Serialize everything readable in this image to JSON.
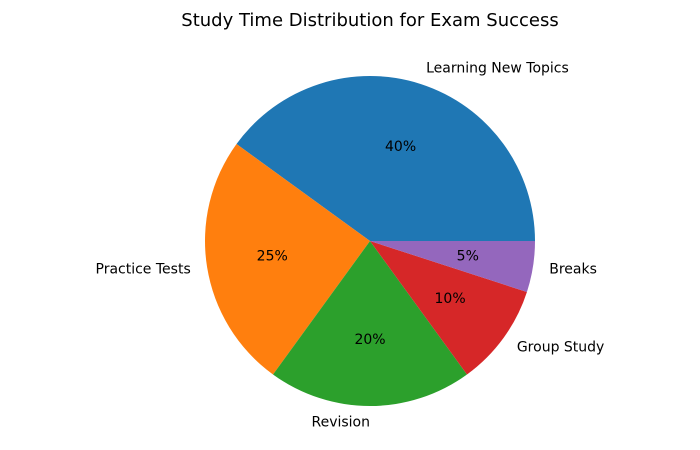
{
  "chart_data": {
    "type": "pie",
    "title": "Study Time Distribution for Exam Success",
    "start_angle_deg": 0,
    "direction": "counterclockwise",
    "slices": [
      {
        "label": "Learning New Topics",
        "value": 40,
        "pct_label": "40%",
        "color": "#1f77b4"
      },
      {
        "label": "Practice Tests",
        "value": 25,
        "pct_label": "25%",
        "color": "#ff7f0e"
      },
      {
        "label": "Revision",
        "value": 20,
        "pct_label": "20%",
        "color": "#2ca02c"
      },
      {
        "label": "Group Study",
        "value": 10,
        "pct_label": "10%",
        "color": "#d62728"
      },
      {
        "label": "Breaks",
        "value": 5,
        "pct_label": "5%",
        "color": "#9467bd"
      }
    ]
  }
}
